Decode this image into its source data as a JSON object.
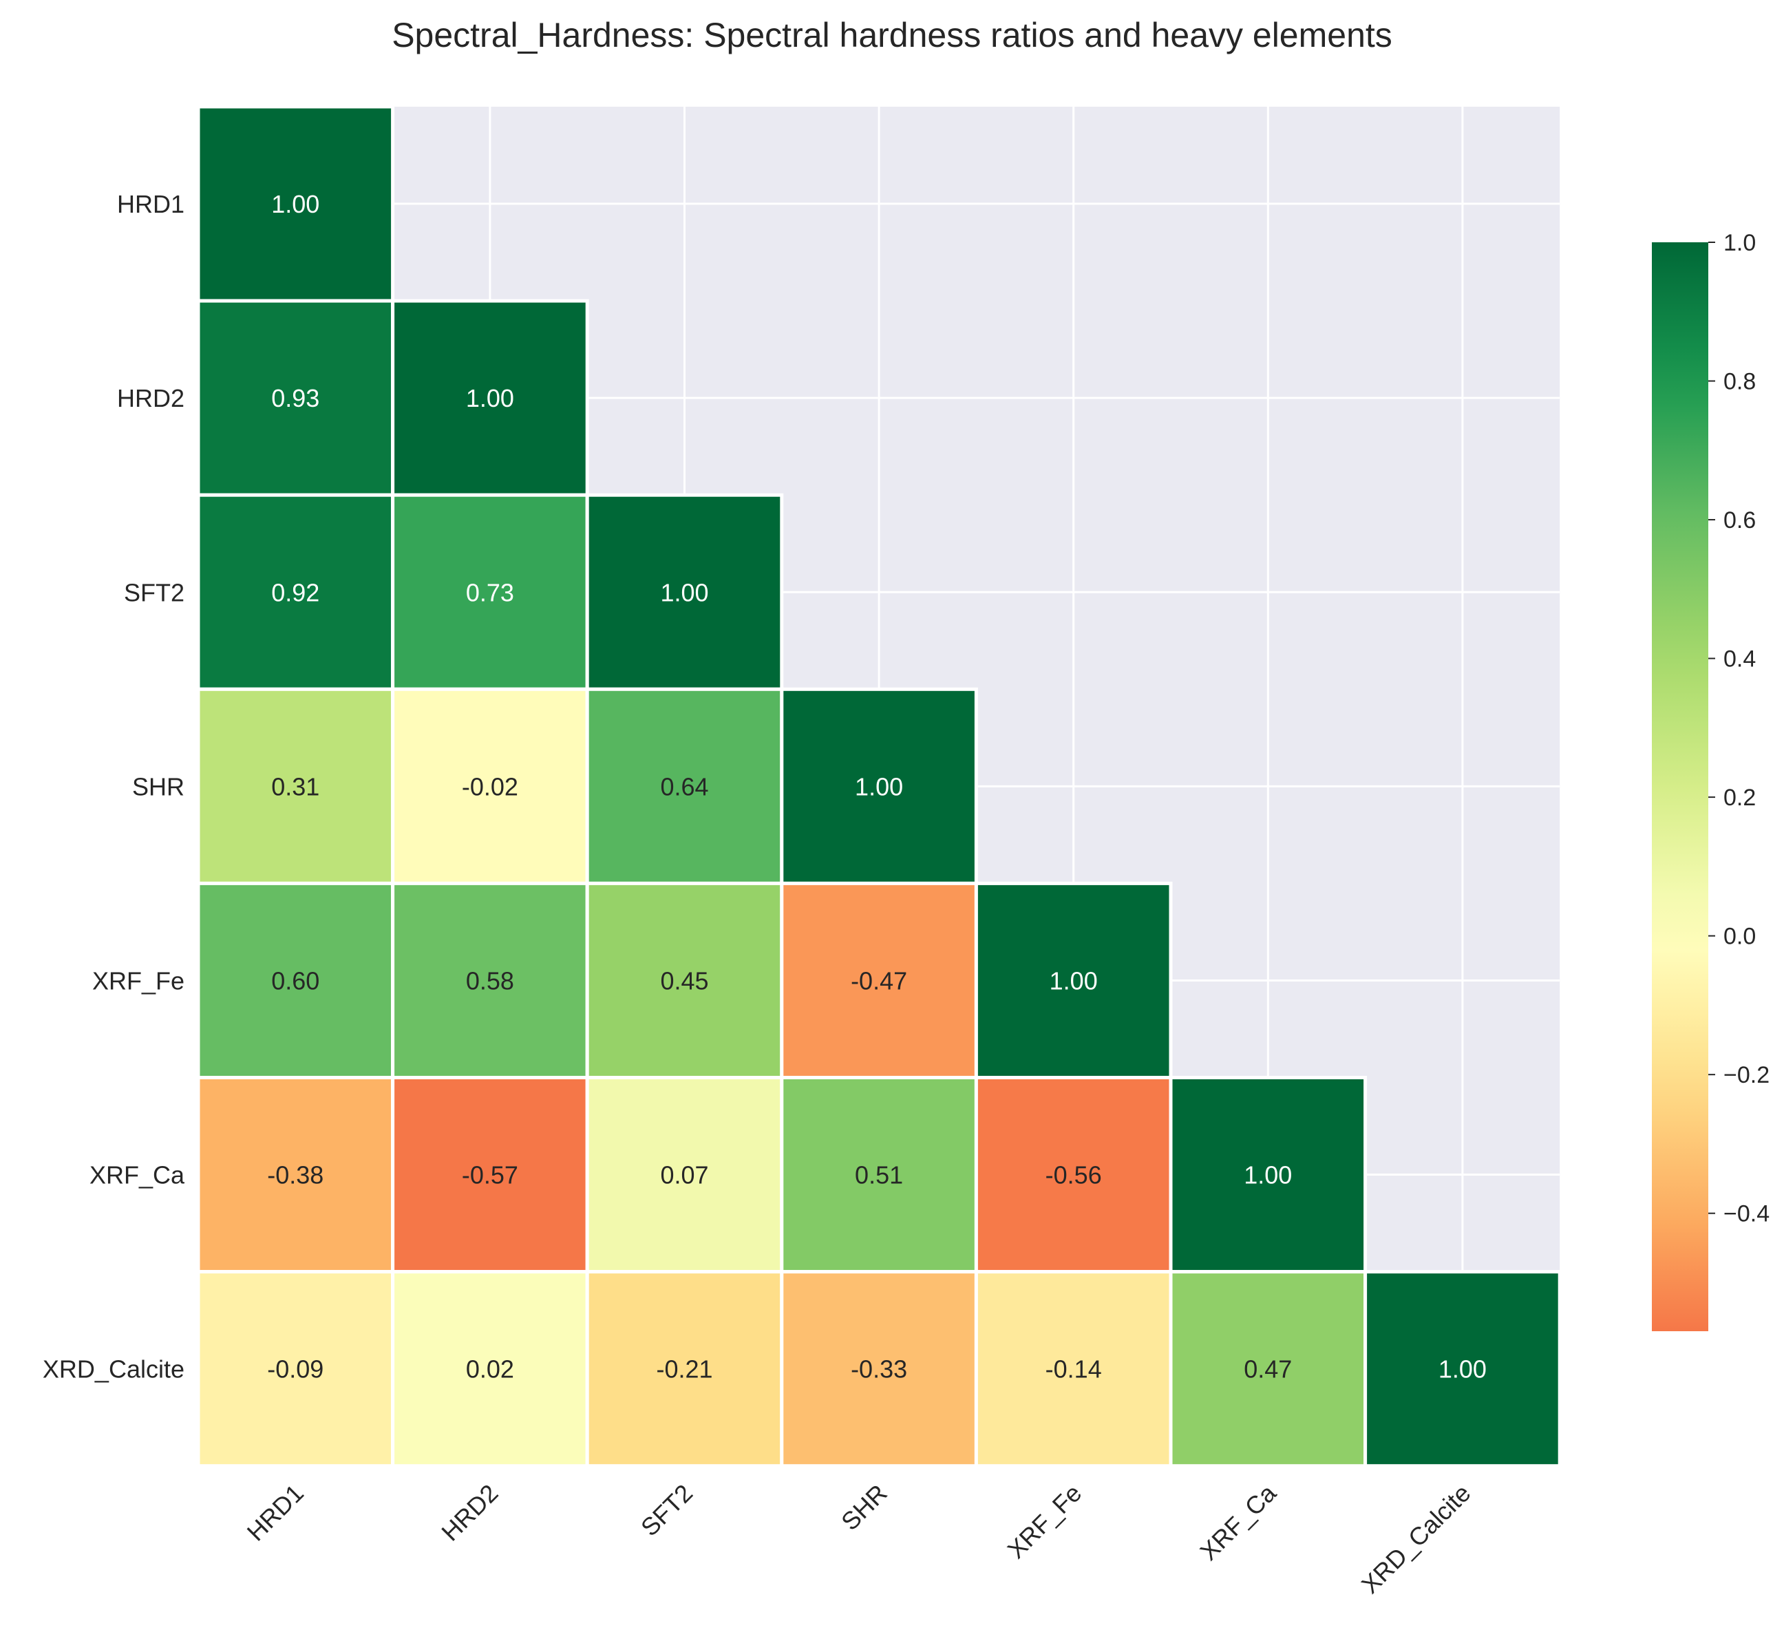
{
  "chart_data": {
    "type": "heatmap",
    "title": "Spectral_Hardness: Spectral hardness ratios and heavy elements",
    "xlabel": "",
    "ylabel": "",
    "rows": [
      "HRD1",
      "HRD2",
      "SFT2",
      "SHR",
      "XRF_Fe",
      "XRF_Ca",
      "XRD_Calcite"
    ],
    "columns": [
      "HRD1",
      "HRD2",
      "SFT2",
      "SHR",
      "XRF_Fe",
      "XRF_Ca",
      "XRD_Calcite"
    ],
    "values": [
      [
        1.0,
        null,
        null,
        null,
        null,
        null,
        null
      ],
      [
        0.93,
        1.0,
        null,
        null,
        null,
        null,
        null
      ],
      [
        0.92,
        0.73,
        1.0,
        null,
        null,
        null,
        null
      ],
      [
        0.31,
        -0.02,
        0.64,
        1.0,
        null,
        null,
        null
      ],
      [
        0.6,
        0.58,
        0.45,
        -0.47,
        1.0,
        null,
        null
      ],
      [
        -0.38,
        -0.57,
        0.07,
        0.51,
        -0.56,
        1.0,
        null
      ],
      [
        -0.09,
        0.02,
        -0.21,
        -0.33,
        -0.14,
        0.47,
        1.0
      ]
    ],
    "value_labels": [
      [
        "1.00",
        "",
        "",
        "",
        "",
        "",
        ""
      ],
      [
        "0.93",
        "1.00",
        "",
        "",
        "",
        "",
        ""
      ],
      [
        "0.92",
        "0.73",
        "1.00",
        "",
        "",
        "",
        ""
      ],
      [
        "0.31",
        "-0.02",
        "0.64",
        "1.00",
        "",
        "",
        ""
      ],
      [
        "0.60",
        "0.58",
        "0.45",
        "-0.47",
        "1.00",
        "",
        ""
      ],
      [
        "-0.38",
        "-0.57",
        "0.07",
        "0.51",
        "-0.56",
        "1.00",
        ""
      ],
      [
        "-0.09",
        "0.02",
        "-0.21",
        "-0.33",
        "-0.14",
        "0.47",
        "1.00"
      ]
    ],
    "mask": "upper-triangle",
    "colormap": "RdYlGn",
    "color_range": [
      -0.57,
      1.0
    ],
    "colorbar": {
      "ticks": [
        1.0,
        0.8,
        0.6,
        0.4,
        0.2,
        0.0,
        -0.2,
        -0.4
      ],
      "tick_labels": [
        "1.0",
        "0.8",
        "0.6",
        "0.4",
        "0.2",
        "0.0",
        "−0.2",
        "−0.4"
      ]
    },
    "grid": true,
    "background": "#eaeaf2"
  }
}
